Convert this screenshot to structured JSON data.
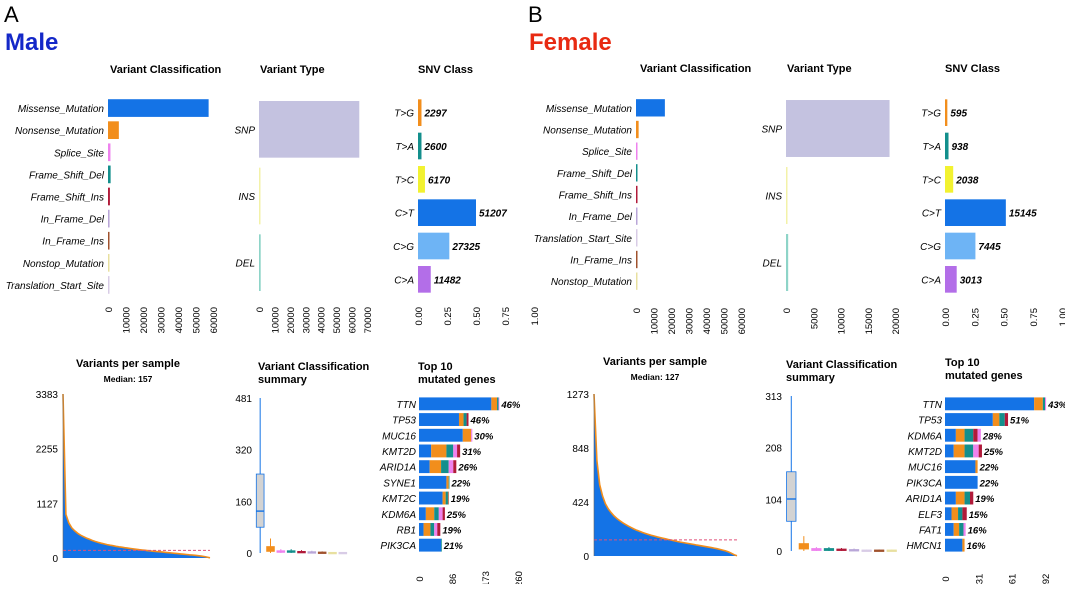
{
  "colors": {
    "missense": "#1473E6",
    "nonsense": "#F28E1C",
    "splice": "#EE82EE",
    "fs_del": "#138F8C",
    "fs_ins": "#B11B3A",
    "if_del": "#B9A6D8",
    "if_ins": "#A0522D",
    "nonstop": "#E8E0A0",
    "tss": "#D8CCE6",
    "snp": "#C4C2E0",
    "ins": "#F3F2A8",
    "del": "#8ED4C8",
    "tg": "#F28E1C",
    "ta": "#138F8C",
    "tc": "#F2F230",
    "ct": "#1473E6",
    "cg": "#6EB4F5",
    "ca": "#B36EE8",
    "median_line": "#E0507A",
    "box_fill": "#D3D3D3",
    "box_whisker": "#1473E6",
    "title_male": "#1428C8",
    "title_female": "#E82A12"
  },
  "chart_data": [
    {
      "panel": "A",
      "sex": "Male",
      "chart": "variant_classification",
      "type": "bar",
      "orientation": "horizontal",
      "title": "Variant Classification",
      "categories": [
        "Missense_Mutation",
        "Nonsense_Mutation",
        "Splice_Site",
        "Frame_Shift_Del",
        "Frame_Shift_Ins",
        "In_Frame_Del",
        "In_Frame_Ins",
        "Nonstop_Mutation",
        "Translation_Start_Site"
      ],
      "values": [
        57500,
        6200,
        1400,
        1500,
        1100,
        900,
        500,
        150,
        100
      ],
      "color_keys": [
        "missense",
        "nonsense",
        "splice",
        "fs_del",
        "fs_ins",
        "if_del",
        "if_ins",
        "nonstop",
        "tss"
      ],
      "xlim": [
        0,
        60000
      ],
      "xticks": [
        "0",
        "10000",
        "20000",
        "30000",
        "40000",
        "50000",
        "60000"
      ]
    },
    {
      "panel": "A",
      "sex": "Male",
      "chart": "variant_type",
      "type": "bar",
      "orientation": "horizontal",
      "title": "Variant Type",
      "categories": [
        "SNP",
        "INS",
        "DEL"
      ],
      "values": [
        65000,
        450,
        1100
      ],
      "color_keys": [
        "snp",
        "ins",
        "del"
      ],
      "xlim": [
        0,
        70000
      ],
      "xticks": [
        "0",
        "10000",
        "20000",
        "30000",
        "40000",
        "50000",
        "60000",
        "70000"
      ]
    },
    {
      "panel": "A",
      "sex": "Male",
      "chart": "snv_class",
      "type": "bar",
      "orientation": "horizontal",
      "title": "SNV Class",
      "categories": [
        "T>G",
        "T>A",
        "T>C",
        "C>T",
        "C>G",
        "C>A"
      ],
      "counts": [
        "2297",
        "2600",
        "6170",
        "51207",
        "27325",
        "11482"
      ],
      "values": [
        0.03,
        0.03,
        0.06,
        0.5,
        0.27,
        0.11
      ],
      "color_keys": [
        "tg",
        "ta",
        "tc",
        "ct",
        "cg",
        "ca"
      ],
      "xlim": [
        0,
        1
      ],
      "xticks": [
        "0.00",
        "0.25",
        "0.50",
        "0.75",
        "1.00"
      ]
    },
    {
      "panel": "A",
      "sex": "Male",
      "chart": "variants_per_sample",
      "type": "area",
      "title": "Variants per sample",
      "subtitle": "Median: 157",
      "ylim": [
        0,
        3383
      ],
      "yticks": [
        "0",
        "1127",
        "2255",
        "3383"
      ],
      "median": 157,
      "profile": [
        3383,
        900,
        720,
        620,
        560,
        510,
        470,
        440,
        410,
        385,
        360,
        340,
        322,
        305,
        290,
        277,
        265,
        253,
        242,
        232,
        222,
        213,
        204,
        195,
        187,
        180,
        172,
        165,
        158,
        151,
        145,
        139,
        133,
        127,
        121,
        115,
        109,
        103,
        97,
        91,
        85,
        79,
        73,
        67,
        61,
        55,
        48,
        40,
        30,
        18,
        5
      ]
    },
    {
      "panel": "A",
      "sex": "Male",
      "chart": "variant_classification_summary",
      "type": "box",
      "title": "Variant Classification\nsummary",
      "ylim": [
        0,
        481
      ],
      "yticks": [
        "0",
        "160",
        "320",
        "481"
      ],
      "boxes": [
        {
          "key": "missense",
          "q1": 80,
          "median": 130,
          "q3": 245,
          "min": 0,
          "max": 481
        },
        {
          "key": "nonsense",
          "q1": 5,
          "median": 12,
          "q3": 20,
          "min": 0,
          "max": 45
        },
        {
          "key": "splice",
          "q1": 2,
          "median": 4,
          "q3": 7,
          "min": 0,
          "max": 12
        },
        {
          "key": "fs_del",
          "q1": 2,
          "median": 4,
          "q3": 7,
          "min": 0,
          "max": 12
        },
        {
          "key": "fs_ins",
          "q1": 1,
          "median": 3,
          "q3": 5,
          "min": 0,
          "max": 9
        },
        {
          "key": "if_del",
          "q1": 1,
          "median": 2,
          "q3": 4,
          "min": 0,
          "max": 7
        },
        {
          "key": "if_ins",
          "q1": 0,
          "median": 1,
          "q3": 3,
          "min": 0,
          "max": 5
        },
        {
          "key": "nonstop",
          "q1": 0,
          "median": 1,
          "q3": 2,
          "min": 0,
          "max": 3
        },
        {
          "key": "tss",
          "q1": 0,
          "median": 1,
          "q3": 2,
          "min": 0,
          "max": 3
        }
      ]
    },
    {
      "panel": "A",
      "sex": "Male",
      "chart": "top10_genes",
      "type": "bar",
      "orientation": "horizontal",
      "stacked": true,
      "title": "Top 10\nmutated genes",
      "genes": [
        "TTN",
        "TP53",
        "MUC16",
        "KMT2D",
        "ARID1A",
        "SYNE1",
        "KMT2C",
        "KDM6A",
        "RB1",
        "PIK3CA"
      ],
      "percents": [
        "46%",
        "46%",
        "30%",
        "31%",
        "26%",
        "22%",
        "19%",
        "25%",
        "19%",
        "21%"
      ],
      "segments": [
        [
          [
            "missense",
            190
          ],
          [
            "nonsense",
            15
          ],
          [
            "fs_del",
            4
          ],
          [
            "splice",
            2
          ]
        ],
        [
          [
            "missense",
            105
          ],
          [
            "nonsense",
            12
          ],
          [
            "fs_del",
            8
          ],
          [
            "fs_ins",
            5
          ]
        ],
        [
          [
            "missense",
            115
          ],
          [
            "nonsense",
            22
          ],
          [
            "splice",
            3
          ]
        ],
        [
          [
            "missense",
            32
          ],
          [
            "nonsense",
            40
          ],
          [
            "fs_del",
            18
          ],
          [
            "splice",
            10
          ],
          [
            "fs_ins",
            8
          ]
        ],
        [
          [
            "missense",
            28
          ],
          [
            "nonsense",
            30
          ],
          [
            "fs_del",
            20
          ],
          [
            "splice",
            12
          ],
          [
            "fs_ins",
            8
          ]
        ],
        [
          [
            "missense",
            72
          ],
          [
            "nonsense",
            6
          ],
          [
            "fs_del",
            2
          ]
        ],
        [
          [
            "missense",
            62
          ],
          [
            "nonsense",
            8
          ],
          [
            "fs_del",
            6
          ],
          [
            "if_ins",
            2
          ]
        ],
        [
          [
            "missense",
            18
          ],
          [
            "nonsense",
            22
          ],
          [
            "fs_del",
            12
          ],
          [
            "splice",
            10
          ],
          [
            "fs_ins",
            6
          ]
        ],
        [
          [
            "missense",
            12
          ],
          [
            "nonsense",
            18
          ],
          [
            "fs_del",
            10
          ],
          [
            "splice",
            8
          ],
          [
            "fs_ins",
            8
          ]
        ],
        [
          [
            "missense",
            58
          ],
          [
            "fs_del",
            2
          ]
        ]
      ],
      "xlim": [
        0,
        260
      ],
      "xticks": [
        "0",
        "86",
        "173",
        "260"
      ]
    },
    {
      "panel": "B",
      "sex": "Female",
      "chart": "variant_classification",
      "type": "bar",
      "orientation": "horizontal",
      "title": "Variant Classification",
      "categories": [
        "Missense_Mutation",
        "Nonsense_Mutation",
        "Splice_Site",
        "Frame_Shift_Del",
        "Frame_Shift_Ins",
        "In_Frame_Del",
        "Translation_Start_Site",
        "In_Frame_Ins",
        "Nonstop_Mutation"
      ],
      "values": [
        16500,
        1500,
        450,
        500,
        450,
        200,
        60,
        120,
        40
      ],
      "color_keys": [
        "missense",
        "nonsense",
        "splice",
        "fs_del",
        "fs_ins",
        "if_del",
        "tss",
        "if_ins",
        "nonstop"
      ],
      "xlim": [
        0,
        60000
      ],
      "xticks": [
        "0",
        "10000",
        "20000",
        "30000",
        "40000",
        "50000",
        "60000"
      ]
    },
    {
      "panel": "B",
      "sex": "Female",
      "chart": "variant_type",
      "type": "bar",
      "orientation": "horizontal",
      "title": "Variant Type",
      "categories": [
        "SNP",
        "INS",
        "DEL"
      ],
      "values": [
        19000,
        150,
        400
      ],
      "color_keys": [
        "snp",
        "ins",
        "del"
      ],
      "xlim": [
        0,
        20000
      ],
      "xticks": [
        "0",
        "5000",
        "10000",
        "15000",
        "20000"
      ]
    },
    {
      "panel": "B",
      "sex": "Female",
      "chart": "snv_class",
      "type": "bar",
      "orientation": "horizontal",
      "title": "SNV Class",
      "categories": [
        "T>G",
        "T>A",
        "T>C",
        "C>T",
        "C>G",
        "C>A"
      ],
      "counts": [
        "595",
        "938",
        "2038",
        "15145",
        "7445",
        "3013"
      ],
      "values": [
        0.02,
        0.03,
        0.07,
        0.52,
        0.26,
        0.1
      ],
      "color_keys": [
        "tg",
        "ta",
        "tc",
        "ct",
        "cg",
        "ca"
      ],
      "xlim": [
        0,
        1
      ],
      "xticks": [
        "0.00",
        "0.25",
        "0.50",
        "0.75",
        "1.00"
      ]
    },
    {
      "panel": "B",
      "sex": "Female",
      "chart": "variants_per_sample",
      "type": "area",
      "title": "Variants per sample",
      "subtitle": "Median: 127",
      "ylim": [
        0,
        1273
      ],
      "yticks": [
        "0",
        "424",
        "848",
        "1273"
      ],
      "median": 127,
      "profile": [
        1273,
        750,
        560,
        470,
        410,
        370,
        340,
        315,
        295,
        278,
        262,
        248,
        235,
        223,
        212,
        202,
        193,
        185,
        177,
        170,
        163,
        157,
        151,
        145,
        140,
        135,
        130,
        125,
        120,
        115,
        110,
        106,
        102,
        98,
        94,
        90,
        86,
        82,
        78,
        74,
        70,
        66,
        62,
        57,
        52,
        46,
        40,
        32,
        22,
        10,
        2
      ]
    },
    {
      "panel": "B",
      "sex": "Female",
      "chart": "variant_classification_summary",
      "type": "box",
      "title": "Variant Classification\nsummary",
      "ylim": [
        0,
        313
      ],
      "yticks": [
        "0",
        "104",
        "208",
        "313"
      ],
      "boxes": [
        {
          "key": "missense",
          "q1": 60,
          "median": 105,
          "q3": 160,
          "min": 0,
          "max": 313
        },
        {
          "key": "nonsense",
          "q1": 4,
          "median": 9,
          "q3": 15,
          "min": 0,
          "max": 30
        },
        {
          "key": "splice",
          "q1": 1,
          "median": 3,
          "q3": 5,
          "min": 0,
          "max": 8
        },
        {
          "key": "fs_del",
          "q1": 1,
          "median": 3,
          "q3": 5,
          "min": 0,
          "max": 8
        },
        {
          "key": "fs_ins",
          "q1": 1,
          "median": 2,
          "q3": 4,
          "min": 0,
          "max": 6
        },
        {
          "key": "if_del",
          "q1": 0,
          "median": 1,
          "q3": 3,
          "min": 0,
          "max": 5
        },
        {
          "key": "tss",
          "q1": 0,
          "median": 1,
          "q3": 2,
          "min": 0,
          "max": 3
        },
        {
          "key": "if_ins",
          "q1": 0,
          "median": 1,
          "q3": 2,
          "min": 0,
          "max": 3
        },
        {
          "key": "nonstop",
          "q1": 0,
          "median": 1,
          "q3": 2,
          "min": 0,
          "max": 3
        }
      ]
    },
    {
      "panel": "B",
      "sex": "Female",
      "chart": "top10_genes",
      "type": "bar",
      "orientation": "horizontal",
      "stacked": true,
      "title": "Top 10\nmutated genes",
      "genes": [
        "TTN",
        "TP53",
        "KDM6A",
        "KMT2D",
        "MUC16",
        "PIK3CA",
        "ARID1A",
        "ELF3",
        "FAT1",
        "HMCN1"
      ],
      "percents": [
        "43%",
        "51%",
        "28%",
        "25%",
        "22%",
        "22%",
        "19%",
        "15%",
        "16%",
        "16%"
      ],
      "segments": [
        [
          [
            "missense",
            82
          ],
          [
            "nonsense",
            8
          ],
          [
            "fs_del",
            2
          ],
          [
            "splice",
            1
          ]
        ],
        [
          [
            "missense",
            44
          ],
          [
            "nonsense",
            6
          ],
          [
            "fs_del",
            5
          ],
          [
            "fs_ins",
            3
          ]
        ],
        [
          [
            "missense",
            10
          ],
          [
            "nonsense",
            8
          ],
          [
            "fs_del",
            8
          ],
          [
            "fs_ins",
            4
          ],
          [
            "splice",
            3
          ]
        ],
        [
          [
            "missense",
            8
          ],
          [
            "nonsense",
            10
          ],
          [
            "fs_del",
            8
          ],
          [
            "splice",
            5
          ],
          [
            "fs_ins",
            3
          ]
        ],
        [
          [
            "missense",
            28
          ],
          [
            "nonsense",
            2
          ]
        ],
        [
          [
            "missense",
            30
          ]
        ],
        [
          [
            "missense",
            10
          ],
          [
            "nonsense",
            8
          ],
          [
            "fs_del",
            5
          ],
          [
            "fs_ins",
            3
          ]
        ],
        [
          [
            "missense",
            6
          ],
          [
            "nonsense",
            6
          ],
          [
            "fs_del",
            4
          ],
          [
            "fs_ins",
            4
          ]
        ],
        [
          [
            "missense",
            8
          ],
          [
            "nonsense",
            5
          ],
          [
            "fs_del",
            4
          ],
          [
            "splice",
            2
          ]
        ],
        [
          [
            "missense",
            16
          ],
          [
            "nonsense",
            2
          ]
        ]
      ],
      "xlim": [
        0,
        92
      ],
      "xticks": [
        "0",
        "31",
        "61",
        "92"
      ]
    }
  ],
  "panels": [
    {
      "letter": "A",
      "label": "Male"
    },
    {
      "letter": "B",
      "label": "Female"
    }
  ]
}
